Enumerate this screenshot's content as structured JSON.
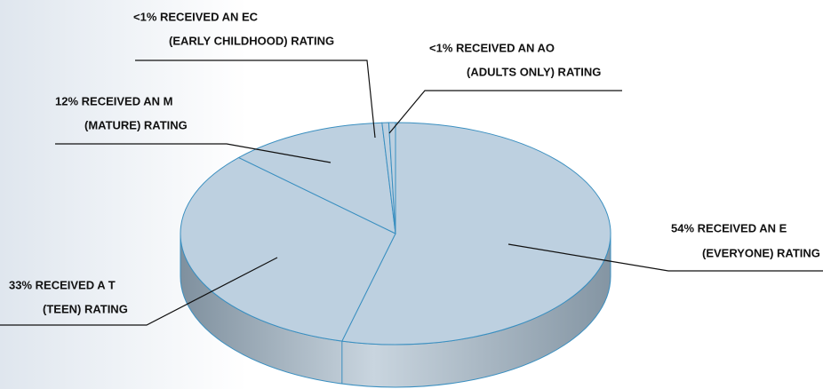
{
  "chart_data": {
    "type": "pie3d",
    "labels": [
      [
        "54% RECEIVED AN E",
        "(EVERYONE) RATING"
      ],
      [
        "33% RECEIVED A T",
        "(TEEN) RATING"
      ],
      [
        "12% RECEIVED AN M",
        "(MATURE) RATING"
      ],
      [
        "<1% RECEIVED AN EC",
        "(EARLY CHILDHOOD) RATING"
      ],
      [
        "<1% RECEIVED AN AO",
        "(ADULTS ONLY) RATING"
      ]
    ],
    "values": [
      54,
      33,
      12,
      0.5,
      0.5
    ],
    "color": "#bdd0e0",
    "edge_color": "#3a8fc0"
  }
}
